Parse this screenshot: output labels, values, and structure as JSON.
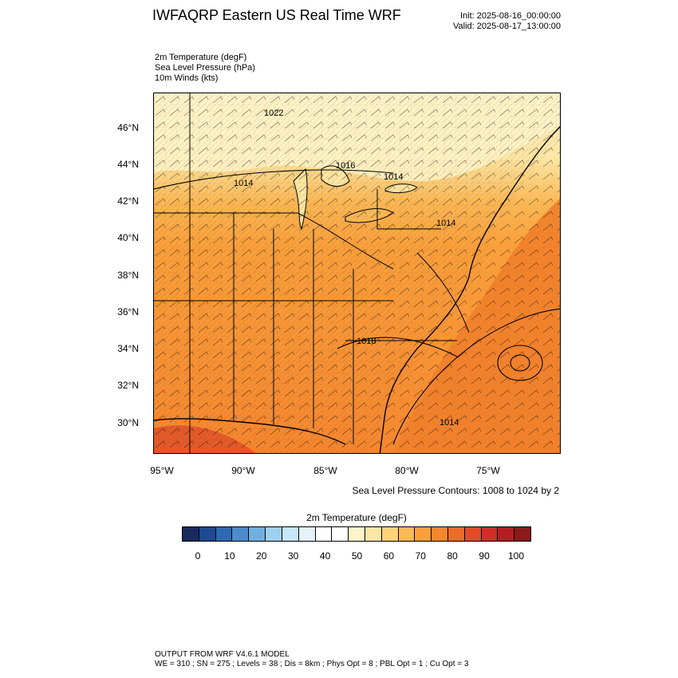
{
  "header": {
    "title": "IWFAQRP Eastern US Real Time WRF",
    "init": "Init: 2025-08-16_00:00:00",
    "valid": "Valid: 2025-08-17_13:00:00"
  },
  "fields": [
    "2m Temperature   (degF)",
    "Sea Level Pressure   (hPa)",
    "10m Winds   (kts)"
  ],
  "map": {
    "lat_labels": [
      "46°N",
      "44°N",
      "42°N",
      "40°N",
      "38°N",
      "36°N",
      "34°N",
      "32°N",
      "30°N"
    ],
    "lon_labels": [
      "95°W",
      "90°W",
      "85°W",
      "80°W",
      "75°W"
    ],
    "pressure_labels": [
      "1022",
      "1016",
      "1014",
      "1014",
      "1014",
      "1018",
      "1014"
    ],
    "colors": {
      "cool": "#fff3c8",
      "mild": "#fdd27a",
      "warm": "#f9a03c",
      "hot": "#f0802b",
      "gulf": "#e45a2a",
      "border": "#000000"
    }
  },
  "contour_note": "Sea Level Pressure Contours: 1008 to 1024 by 2",
  "colorbar": {
    "title": "2m Temperature  (degF)",
    "labels": [
      "0",
      "10",
      "20",
      "30",
      "40",
      "50",
      "60",
      "70",
      "80",
      "90",
      "100"
    ],
    "colors": [
      "#192a5e",
      "#1f4a92",
      "#2e69b3",
      "#4a8ccb",
      "#6fb0e0",
      "#9dd0f1",
      "#c5e5f8",
      "#e3f2fb",
      "#ffffff",
      "#ffffff",
      "#fff3c8",
      "#fde6a3",
      "#fdd27a",
      "#fbb856",
      "#f9a03c",
      "#f5862f",
      "#ee6b2a",
      "#e24b28",
      "#d02e26",
      "#b41d22",
      "#8b1a1a"
    ]
  },
  "footer": {
    "line1": "OUTPUT FROM WRF V4.6.1 MODEL",
    "line2": "WE = 310 ; SN = 275 ; Levels = 38 ; Dis = 8km ; Phys Opt = 8 ; PBL Opt = 1 ; Cu Opt = 3"
  }
}
